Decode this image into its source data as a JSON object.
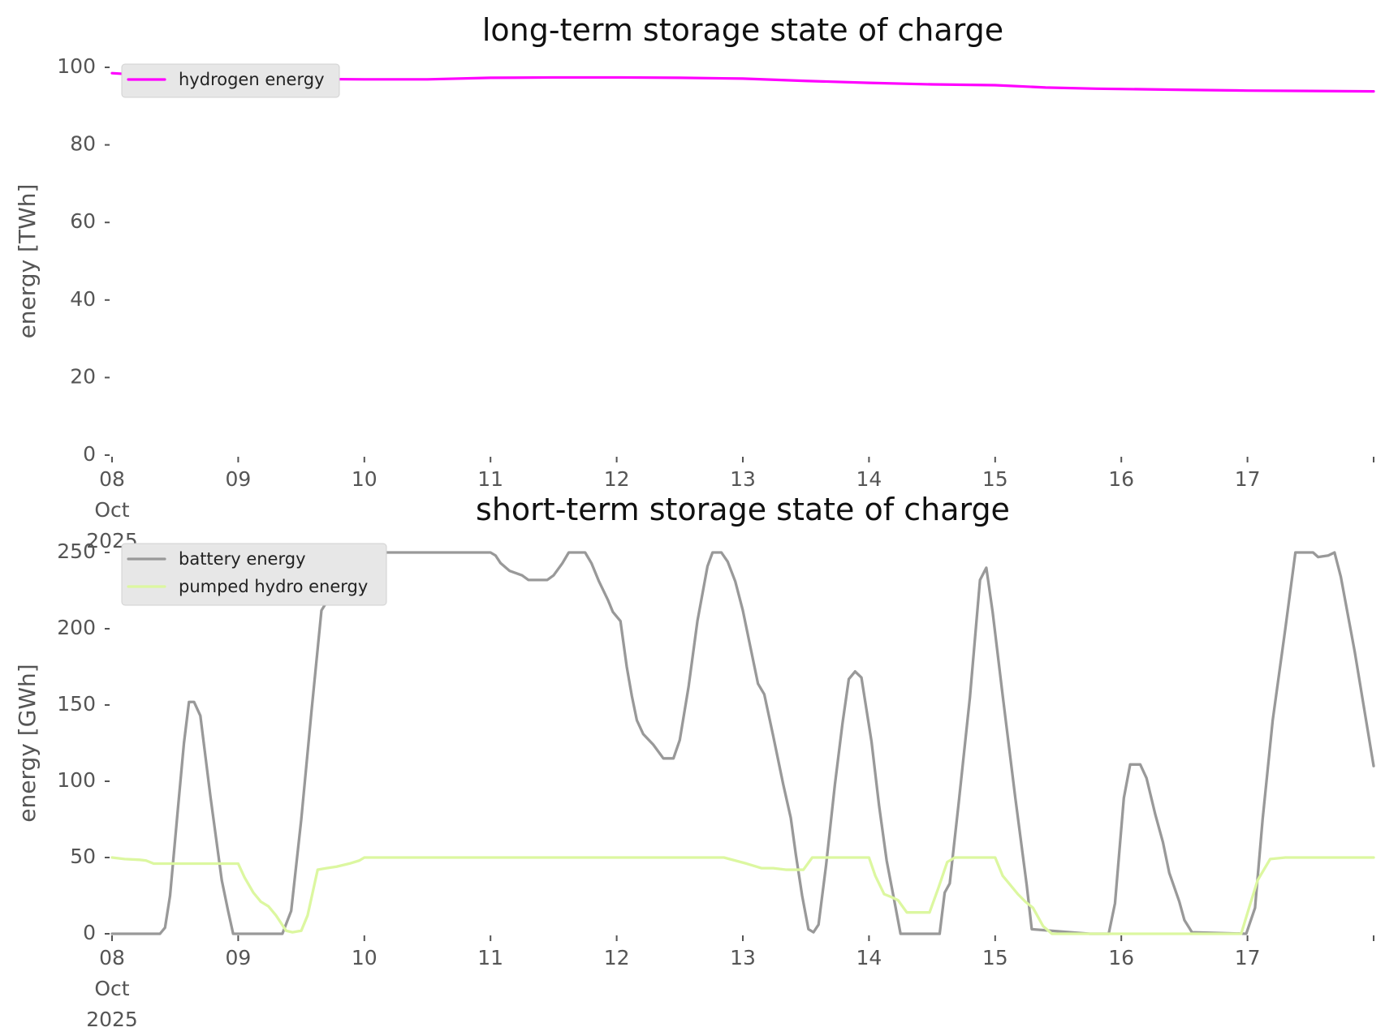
{
  "chart_data": [
    {
      "type": "line",
      "title": "long-term storage state of charge",
      "xlabel": "",
      "ylabel": "energy [TWh]",
      "ylim": [
        0,
        100
      ],
      "yticks": [
        "0",
        "20",
        "40",
        "60",
        "80",
        "100"
      ],
      "xticks": [
        {
          "label": "08\nOct\n2025",
          "x": 0
        },
        {
          "label": "09",
          "x": 1
        },
        {
          "label": "10",
          "x": 2
        },
        {
          "label": "11",
          "x": 3
        },
        {
          "label": "12",
          "x": 4
        },
        {
          "label": "13",
          "x": 5
        },
        {
          "label": "14",
          "x": 6
        },
        {
          "label": "15",
          "x": 7
        },
        {
          "label": "16",
          "x": 8
        },
        {
          "label": "17",
          "x": 9
        }
      ],
      "xlim": [
        0,
        10
      ],
      "grid": false,
      "legend": "top-left",
      "series": [
        {
          "name": "hydrogen energy",
          "color": "#ff00ff",
          "points": [
            [
              0.0,
              98.5
            ],
            [
              0.5,
              97.5
            ],
            [
              1.0,
              97.2
            ],
            [
              1.5,
              97.0
            ],
            [
              2.0,
              96.9
            ],
            [
              2.5,
              96.9
            ],
            [
              3.0,
              97.3
            ],
            [
              3.5,
              97.4
            ],
            [
              4.0,
              97.4
            ],
            [
              4.5,
              97.3
            ],
            [
              5.0,
              97.1
            ],
            [
              5.5,
              96.5
            ],
            [
              6.0,
              96.0
            ],
            [
              6.5,
              95.6
            ],
            [
              7.0,
              95.4
            ],
            [
              7.4,
              94.8
            ],
            [
              7.8,
              94.5
            ],
            [
              8.5,
              94.2
            ],
            [
              9.0,
              94.0
            ],
            [
              9.5,
              93.9
            ],
            [
              10.0,
              93.8
            ]
          ]
        }
      ]
    },
    {
      "type": "line",
      "title": "short-term storage state of charge",
      "xlabel": "",
      "ylabel": "energy [GWh]",
      "ylim": [
        0,
        250
      ],
      "yticks": [
        "0",
        "50",
        "100",
        "150",
        "200",
        "250"
      ],
      "xticks": [
        {
          "label": "08\nOct\n2025",
          "x": 0
        },
        {
          "label": "09",
          "x": 1
        },
        {
          "label": "10",
          "x": 2
        },
        {
          "label": "11",
          "x": 3
        },
        {
          "label": "12",
          "x": 4
        },
        {
          "label": "13",
          "x": 5
        },
        {
          "label": "14",
          "x": 6
        },
        {
          "label": "15",
          "x": 7
        },
        {
          "label": "16",
          "x": 8
        },
        {
          "label": "17",
          "x": 9
        }
      ],
      "xlim": [
        0,
        10
      ],
      "grid": false,
      "legend": "top-left",
      "series": [
        {
          "name": "battery energy",
          "color": "#999999",
          "points": [
            [
              0.0,
              0
            ],
            [
              0.38,
              0
            ],
            [
              0.42,
              4
            ],
            [
              0.46,
              25
            ],
            [
              0.52,
              80
            ],
            [
              0.57,
              125
            ],
            [
              0.61,
              152
            ],
            [
              0.65,
              152
            ],
            [
              0.7,
              143
            ],
            [
              0.78,
              90
            ],
            [
              0.87,
              35
            ],
            [
              0.92,
              15
            ],
            [
              0.96,
              0
            ],
            [
              1.35,
              0
            ],
            [
              1.42,
              15
            ],
            [
              1.5,
              75
            ],
            [
              1.58,
              145
            ],
            [
              1.66,
              212
            ],
            [
              1.72,
              220
            ],
            [
              1.85,
              225
            ],
            [
              1.95,
              235
            ],
            [
              2.0,
              250
            ],
            [
              3.0,
              250
            ],
            [
              3.04,
              248
            ],
            [
              3.08,
              243
            ],
            [
              3.15,
              238
            ],
            [
              3.25,
              235
            ],
            [
              3.3,
              232
            ],
            [
              3.45,
              232
            ],
            [
              3.5,
              235
            ],
            [
              3.57,
              243
            ],
            [
              3.62,
              250
            ],
            [
              3.75,
              250
            ],
            [
              3.8,
              243
            ],
            [
              3.86,
              231
            ],
            [
              3.93,
              219
            ],
            [
              3.97,
              211
            ],
            [
              4.03,
              205
            ],
            [
              4.08,
              175
            ],
            [
              4.12,
              156
            ],
            [
              4.16,
              140
            ],
            [
              4.21,
              131
            ],
            [
              4.29,
              124
            ],
            [
              4.37,
              115
            ],
            [
              4.45,
              115
            ],
            [
              4.5,
              127
            ],
            [
              4.57,
              162
            ],
            [
              4.64,
              205
            ],
            [
              4.72,
              241
            ],
            [
              4.76,
              250
            ],
            [
              4.83,
              250
            ],
            [
              4.88,
              244
            ],
            [
              4.94,
              231
            ],
            [
              5.0,
              212
            ],
            [
              5.06,
              188
            ],
            [
              5.12,
              164
            ],
            [
              5.17,
              157
            ],
            [
              5.24,
              130
            ],
            [
              5.32,
              98
            ],
            [
              5.38,
              76
            ],
            [
              5.42,
              52
            ],
            [
              5.47,
              25
            ],
            [
              5.52,
              3
            ],
            [
              5.56,
              1
            ],
            [
              5.6,
              6
            ],
            [
              5.66,
              45
            ],
            [
              5.73,
              98
            ],
            [
              5.79,
              138
            ],
            [
              5.84,
              167
            ],
            [
              5.89,
              172
            ],
            [
              5.94,
              168
            ],
            [
              6.02,
              126
            ],
            [
              6.08,
              84
            ],
            [
              6.14,
              48
            ],
            [
              6.2,
              22
            ],
            [
              6.25,
              0
            ],
            [
              6.56,
              0
            ],
            [
              6.6,
              27
            ],
            [
              6.64,
              33
            ],
            [
              6.71,
              85
            ],
            [
              6.8,
              155
            ],
            [
              6.88,
              232
            ],
            [
              6.93,
              240
            ],
            [
              6.98,
              211
            ],
            [
              7.06,
              156
            ],
            [
              7.16,
              89
            ],
            [
              7.25,
              32
            ],
            [
              7.29,
              3
            ],
            [
              7.75,
              0
            ],
            [
              7.9,
              0
            ],
            [
              7.95,
              20
            ],
            [
              8.02,
              89
            ],
            [
              8.07,
              111
            ],
            [
              8.15,
              111
            ],
            [
              8.2,
              102
            ],
            [
              8.27,
              78
            ],
            [
              8.33,
              60
            ],
            [
              8.38,
              40
            ],
            [
              8.46,
              21
            ],
            [
              8.5,
              9
            ],
            [
              8.56,
              1
            ],
            [
              8.99,
              0
            ],
            [
              9.06,
              17
            ],
            [
              9.12,
              75
            ],
            [
              9.2,
              140
            ],
            [
              9.3,
              200
            ],
            [
              9.38,
              250
            ],
            [
              9.52,
              250
            ],
            [
              9.56,
              247
            ],
            [
              9.64,
              248
            ],
            [
              9.69,
              250
            ],
            [
              9.74,
              234
            ],
            [
              9.85,
              185
            ],
            [
              9.92,
              150
            ],
            [
              10.0,
              110
            ]
          ]
        },
        {
          "name": "pumped hydro energy",
          "color": "#dcf7a0",
          "points": [
            [
              0.0,
              50
            ],
            [
              0.1,
              49
            ],
            [
              0.22,
              48.5
            ],
            [
              0.27,
              48
            ],
            [
              0.33,
              46
            ],
            [
              0.4,
              46
            ],
            [
              0.5,
              46
            ],
            [
              0.61,
              46
            ],
            [
              1.0,
              46
            ],
            [
              1.05,
              37
            ],
            [
              1.12,
              27
            ],
            [
              1.18,
              21
            ],
            [
              1.24,
              18
            ],
            [
              1.3,
              12
            ],
            [
              1.38,
              2
            ],
            [
              1.43,
              1
            ],
            [
              1.5,
              2
            ],
            [
              1.55,
              12
            ],
            [
              1.63,
              42
            ],
            [
              1.7,
              43
            ],
            [
              1.78,
              44
            ],
            [
              1.88,
              46
            ],
            [
              1.96,
              48
            ],
            [
              2.0,
              50
            ],
            [
              2.1,
              50
            ],
            [
              2.2,
              50
            ],
            [
              3.0,
              50
            ],
            [
              4.0,
              50
            ],
            [
              4.85,
              50
            ],
            [
              5.03,
              46
            ],
            [
              5.15,
              43
            ],
            [
              5.24,
              43
            ],
            [
              5.34,
              42
            ],
            [
              5.48,
              42
            ],
            [
              5.55,
              50
            ],
            [
              5.67,
              50
            ],
            [
              5.93,
              50
            ],
            [
              6.0,
              50
            ],
            [
              6.05,
              38
            ],
            [
              6.12,
              26
            ],
            [
              6.18,
              24
            ],
            [
              6.23,
              22
            ],
            [
              6.3,
              14
            ],
            [
              6.4,
              14
            ],
            [
              6.48,
              14
            ],
            [
              6.55,
              30
            ],
            [
              6.62,
              47
            ],
            [
              6.68,
              50
            ],
            [
              6.8,
              50
            ],
            [
              6.96,
              50
            ],
            [
              7.0,
              50
            ],
            [
              7.06,
              38
            ],
            [
              7.12,
              32
            ],
            [
              7.18,
              26
            ],
            [
              7.24,
              21
            ],
            [
              7.3,
              17
            ],
            [
              7.38,
              5
            ],
            [
              7.45,
              0
            ],
            [
              7.55,
              0
            ],
            [
              8.0,
              0
            ],
            [
              8.85,
              0
            ],
            [
              8.95,
              0
            ],
            [
              9.02,
              19
            ],
            [
              9.08,
              35
            ],
            [
              9.18,
              49
            ],
            [
              9.3,
              50
            ],
            [
              9.45,
              50
            ],
            [
              10.0,
              50
            ]
          ]
        }
      ]
    }
  ]
}
